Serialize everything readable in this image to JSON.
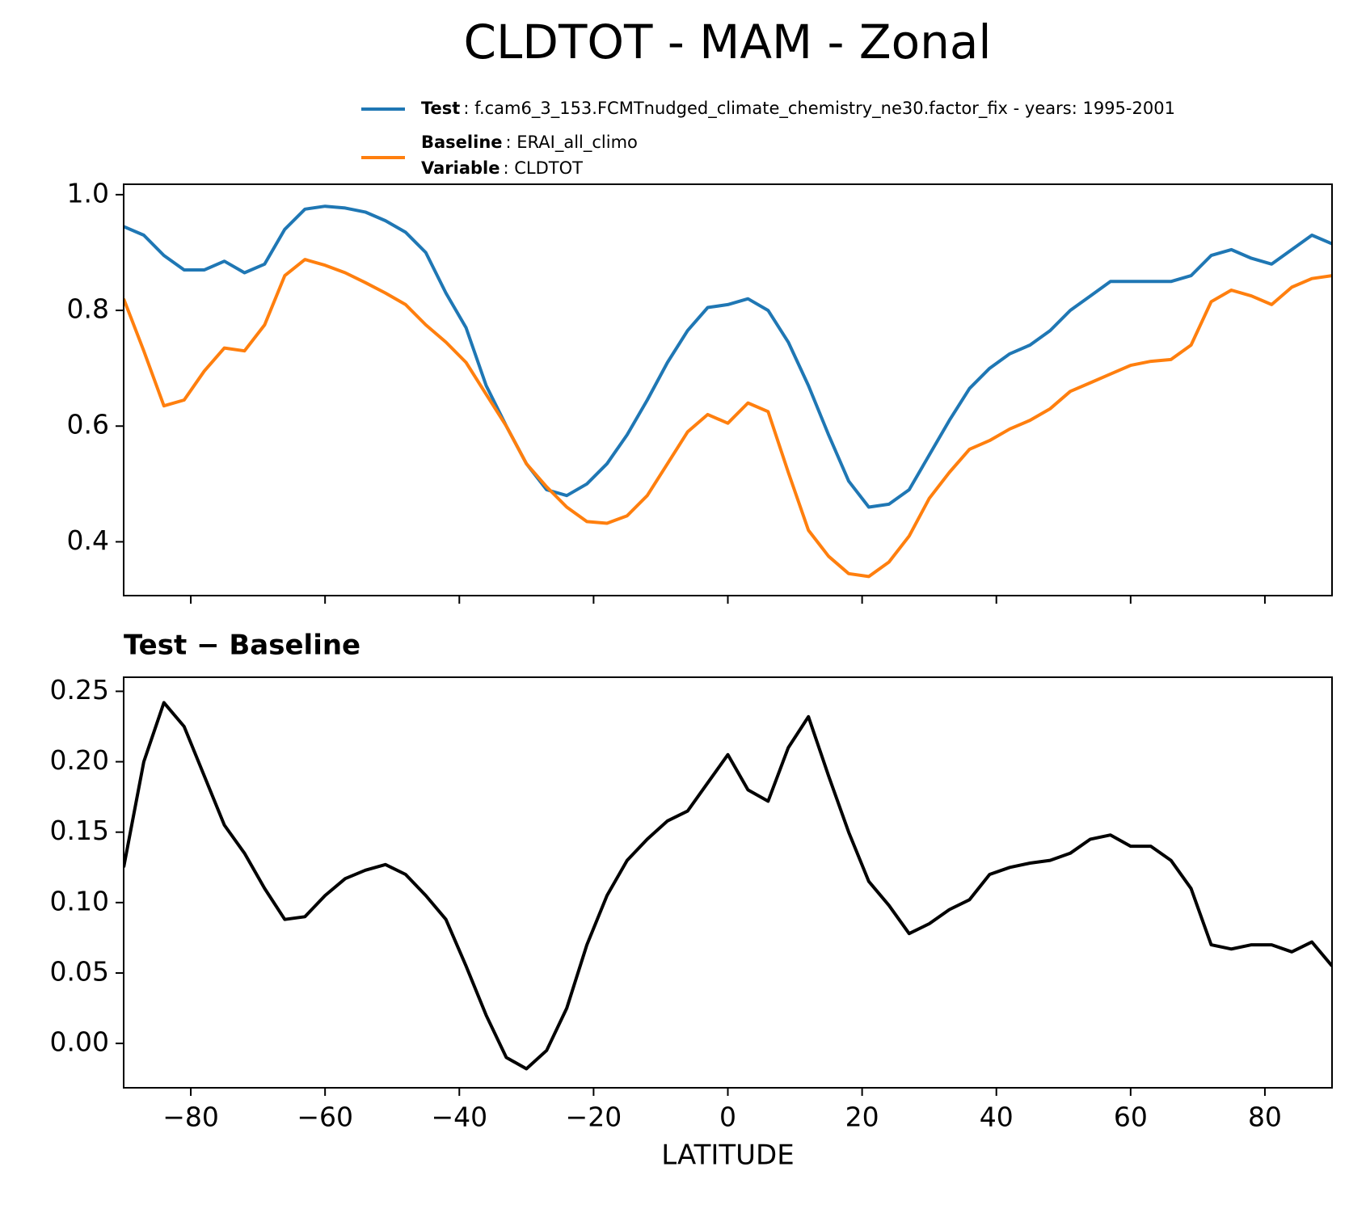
{
  "chart_data": [
    {
      "type": "line",
      "title": "CLDTOT - MAM - Zonal",
      "x": [
        -90,
        -87,
        -84,
        -81,
        -78,
        -75,
        -72,
        -69,
        -66,
        -63,
        -60,
        -57,
        -54,
        -51,
        -48,
        -45,
        -42,
        -39,
        -36,
        -33,
        -30,
        -27,
        -24,
        -21,
        -18,
        -15,
        -12,
        -9,
        -6,
        -3,
        0,
        3,
        6,
        9,
        12,
        15,
        18,
        21,
        24,
        27,
        30,
        33,
        36,
        39,
        42,
        45,
        48,
        51,
        54,
        57,
        60,
        63,
        66,
        69,
        72,
        75,
        78,
        81,
        84,
        87,
        90
      ],
      "series": [
        {
          "name": "Test",
          "legend_text": ": f.cam6_3_153.FCMTnudged_climate_chemistry_ne30.factor_fix - years: 1995-2001",
          "color": "#1f77b4",
          "values": [
            0.945,
            0.93,
            0.895,
            0.87,
            0.87,
            0.885,
            0.865,
            0.88,
            0.94,
            0.975,
            0.98,
            0.977,
            0.97,
            0.955,
            0.935,
            0.9,
            0.83,
            0.77,
            0.67,
            0.6,
            0.535,
            0.49,
            0.48,
            0.5,
            0.535,
            0.585,
            0.645,
            0.71,
            0.765,
            0.805,
            0.81,
            0.82,
            0.8,
            0.745,
            0.67,
            0.585,
            0.505,
            0.46,
            0.465,
            0.49,
            0.55,
            0.61,
            0.665,
            0.7,
            0.725,
            0.74,
            0.765,
            0.8,
            0.825,
            0.85,
            0.85,
            0.85,
            0.85,
            0.86,
            0.895,
            0.905,
            0.89,
            0.88,
            0.905,
            0.93,
            0.915
          ]
        },
        {
          "name": "Baseline",
          "legend_text": ": ERAI_all_climo",
          "color": "#ff7f0e",
          "values": [
            0.82,
            0.73,
            0.635,
            0.645,
            0.695,
            0.735,
            0.73,
            0.775,
            0.86,
            0.888,
            0.878,
            0.865,
            0.848,
            0.83,
            0.81,
            0.775,
            0.745,
            0.71,
            0.655,
            0.6,
            0.535,
            0.495,
            0.46,
            0.435,
            0.432,
            0.445,
            0.48,
            0.535,
            0.59,
            0.62,
            0.605,
            0.64,
            0.625,
            0.52,
            0.42,
            0.375,
            0.345,
            0.34,
            0.365,
            0.41,
            0.475,
            0.52,
            0.56,
            0.575,
            0.595,
            0.61,
            0.63,
            0.66,
            0.675,
            0.69,
            0.705,
            0.712,
            0.715,
            0.74,
            0.815,
            0.835,
            0.825,
            0.81,
            0.84,
            0.855,
            0.86
          ]
        }
      ],
      "legend_extra": {
        "name": "Variable",
        "text": ": CLDTOT"
      },
      "legend": "upper right",
      "xlim": [
        -90,
        90
      ],
      "xticks": [
        -80,
        -60,
        -40,
        -20,
        0,
        20,
        40,
        60,
        80
      ],
      "xticklabels": false,
      "ylim": [
        0.307,
        1.018
      ],
      "yticks": [
        0.4,
        0.6,
        0.8,
        {
          "value": 1,
          "label": "1.0"
        }
      ]
    },
    {
      "type": "line",
      "title": "Test − Baseline",
      "xlabel": "LATITUDE",
      "x": [
        -90,
        -87,
        -84,
        -81,
        -78,
        -75,
        -72,
        -69,
        -66,
        -63,
        -60,
        -57,
        -54,
        -51,
        -48,
        -45,
        -42,
        -39,
        -36,
        -33,
        -30,
        -27,
        -24,
        -21,
        -18,
        -15,
        -12,
        -9,
        -6,
        -3,
        0,
        3,
        6,
        9,
        12,
        15,
        18,
        21,
        24,
        27,
        30,
        33,
        36,
        39,
        42,
        45,
        48,
        51,
        54,
        57,
        60,
        63,
        66,
        69,
        72,
        75,
        78,
        81,
        84,
        87,
        90
      ],
      "color": "#000000",
      "values": [
        0.125,
        0.2,
        0.242,
        0.225,
        0.19,
        0.155,
        0.135,
        0.11,
        0.088,
        0.09,
        0.105,
        0.117,
        0.123,
        0.127,
        0.12,
        0.105,
        0.088,
        0.055,
        0.02,
        -0.01,
        -0.018,
        -0.005,
        0.025,
        0.07,
        0.105,
        0.13,
        0.145,
        0.158,
        0.165,
        0.185,
        0.205,
        0.18,
        0.172,
        0.21,
        0.232,
        0.19,
        0.15,
        0.115,
        0.098,
        0.078,
        0.085,
        0.095,
        0.102,
        0.12,
        0.125,
        0.128,
        0.13,
        0.135,
        0.145,
        0.148,
        0.14,
        0.14,
        0.13,
        0.11,
        0.07,
        0.067,
        0.07,
        0.07,
        0.065,
        0.072,
        0.055
      ],
      "xlim": [
        -90,
        90
      ],
      "xticks": [
        {
          "value": -80,
          "label": "−80"
        },
        {
          "value": -60,
          "label": "−60"
        },
        {
          "value": -40,
          "label": "−40"
        },
        {
          "value": -20,
          "label": "−20"
        },
        0,
        20,
        40,
        60,
        80
      ],
      "xticklabels": true,
      "ylim": [
        -0.0315,
        0.26
      ],
      "yticks": [
        {
          "value": 0,
          "label": "0.00"
        },
        0.05,
        {
          "value": 0.1,
          "label": "0.10"
        },
        0.15,
        {
          "value": 0.2,
          "label": "0.20"
        },
        0.25
      ]
    }
  ]
}
